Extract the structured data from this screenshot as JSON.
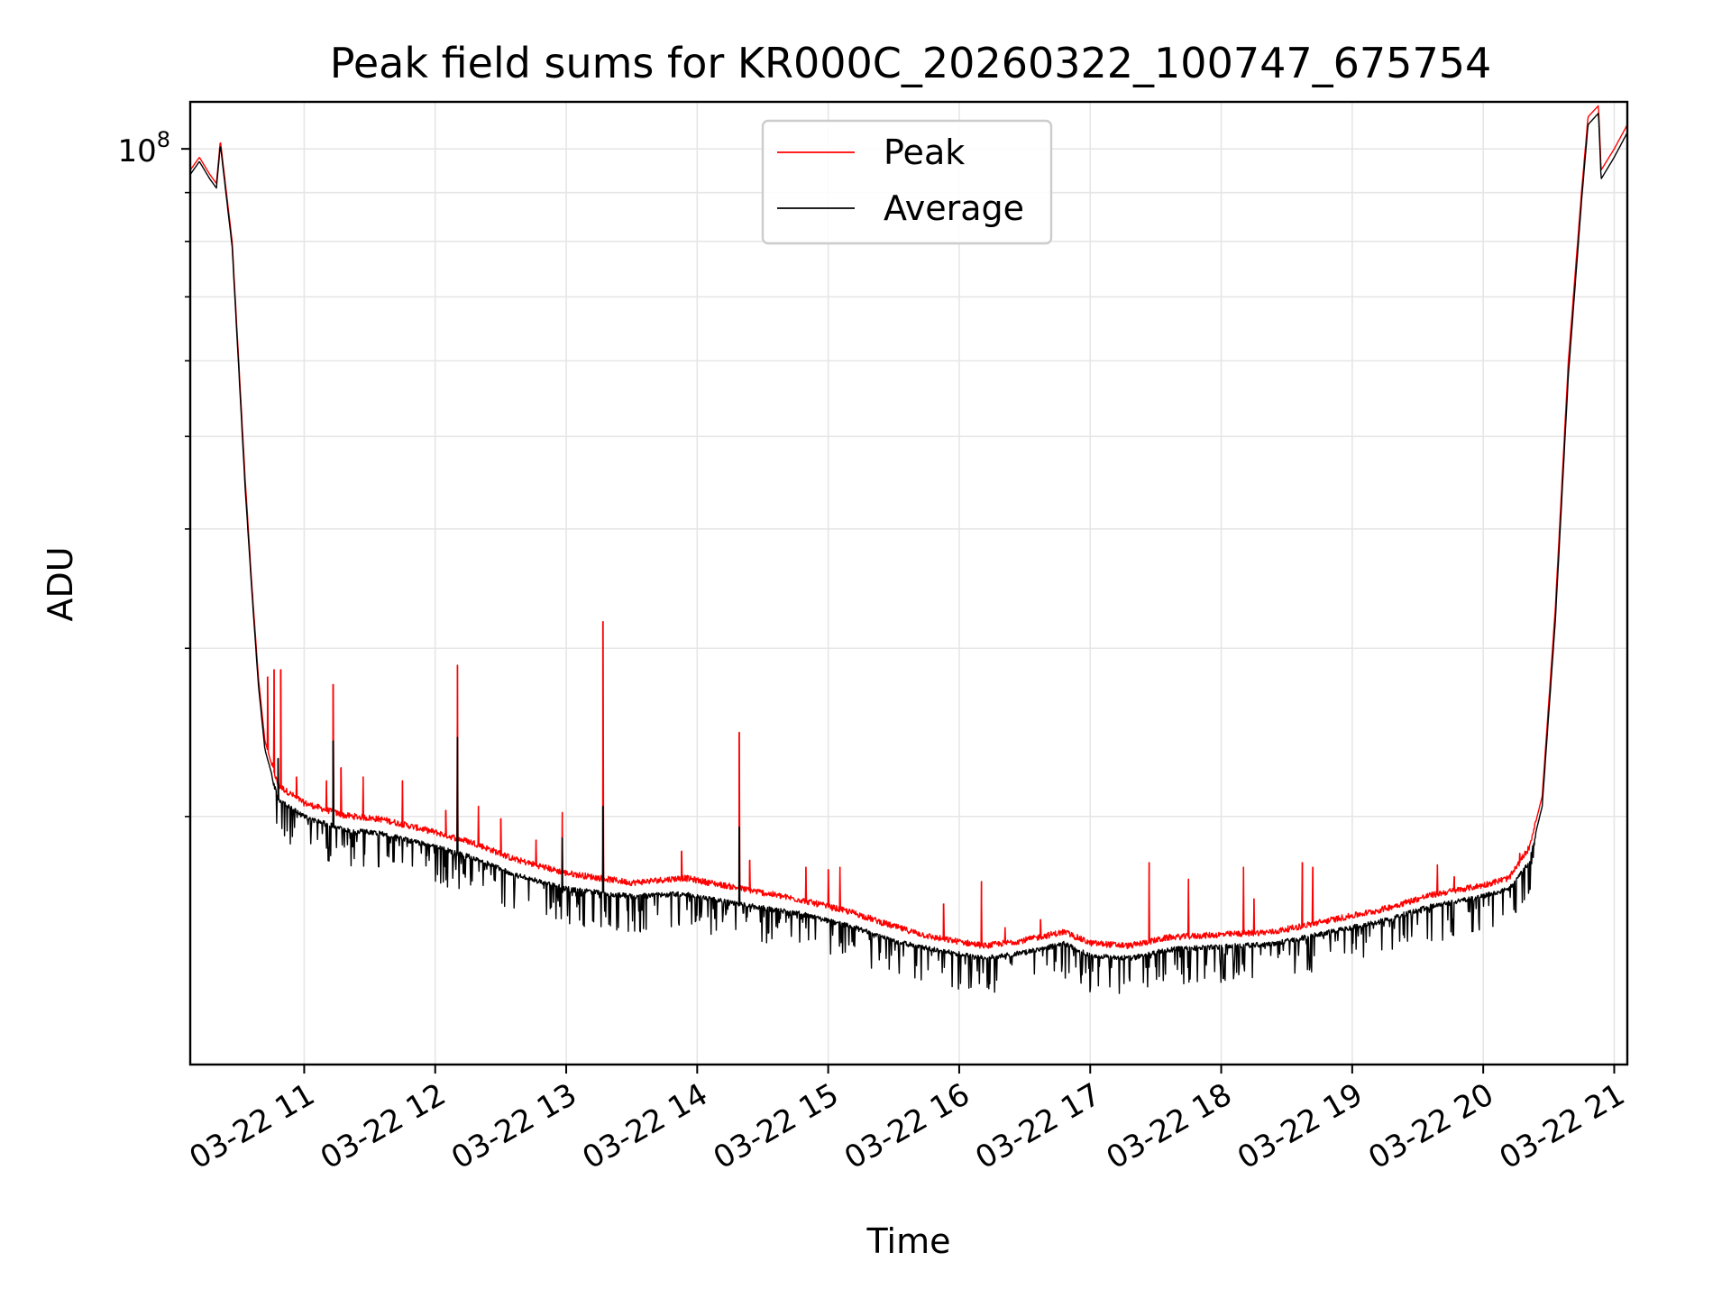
{
  "chart_data": {
    "type": "line",
    "title": "Peak field sums for KR000C_20260322_100747_675754",
    "xlabel": "Time",
    "ylabel": "ADU",
    "yscale": "log",
    "ylim": [
      11000000,
      112000000
    ],
    "xlim_hours": [
      10.13,
      21.1
    ],
    "grid": true,
    "x_ticks": [
      {
        "hour": 11,
        "label": "03-22 11"
      },
      {
        "hour": 12,
        "label": "03-22 12"
      },
      {
        "hour": 13,
        "label": "03-22 13"
      },
      {
        "hour": 14,
        "label": "03-22 14"
      },
      {
        "hour": 15,
        "label": "03-22 15"
      },
      {
        "hour": 16,
        "label": "03-22 16"
      },
      {
        "hour": 17,
        "label": "03-22 17"
      },
      {
        "hour": 18,
        "label": "03-22 18"
      },
      {
        "hour": 19,
        "label": "03-22 19"
      },
      {
        "hour": 20,
        "label": "03-22 20"
      },
      {
        "hour": 21,
        "label": "03-22 21"
      }
    ],
    "y_major_tick": {
      "value": 100000000,
      "base": "10",
      "exp": "8"
    },
    "y_minor_ticks": [
      20000000,
      30000000,
      40000000,
      50000000,
      60000000,
      70000000,
      80000000,
      90000000
    ],
    "legend": {
      "position": "upper-center",
      "entries": [
        "Peak",
        "Average"
      ]
    },
    "series": [
      {
        "name": "Peak",
        "color": "#ff0000",
        "points": [
          [
            10.13,
            95000000
          ],
          [
            10.2,
            98000000
          ],
          [
            10.28,
            94000000
          ],
          [
            10.33,
            92000000
          ],
          [
            10.36,
            102000000
          ],
          [
            10.45,
            80000000
          ],
          [
            10.5,
            60000000
          ],
          [
            10.55,
            45000000
          ],
          [
            10.6,
            35000000
          ],
          [
            10.65,
            28000000
          ],
          [
            10.7,
            24000000
          ],
          [
            10.8,
            21500000
          ],
          [
            11.0,
            20600000
          ],
          [
            11.3,
            20000000
          ],
          [
            11.6,
            19800000
          ],
          [
            12.0,
            19200000
          ],
          [
            12.3,
            18700000
          ],
          [
            12.6,
            18000000
          ],
          [
            13.0,
            17400000
          ],
          [
            13.5,
            17000000
          ],
          [
            13.9,
            17200000
          ],
          [
            14.3,
            16800000
          ],
          [
            14.8,
            16300000
          ],
          [
            15.2,
            15800000
          ],
          [
            15.5,
            15300000
          ],
          [
            15.8,
            14900000
          ],
          [
            16.2,
            14600000
          ],
          [
            16.5,
            14800000
          ],
          [
            16.8,
            15100000
          ],
          [
            17.0,
            14700000
          ],
          [
            17.3,
            14600000
          ],
          [
            17.6,
            14900000
          ],
          [
            18.0,
            15000000
          ],
          [
            18.4,
            15100000
          ],
          [
            18.8,
            15500000
          ],
          [
            19.2,
            15900000
          ],
          [
            19.6,
            16500000
          ],
          [
            20.0,
            16900000
          ],
          [
            20.2,
            17200000
          ],
          [
            20.35,
            18500000
          ],
          [
            20.45,
            21000000
          ],
          [
            20.55,
            33000000
          ],
          [
            20.65,
            60000000
          ],
          [
            20.75,
            90000000
          ],
          [
            20.8,
            108000000
          ],
          [
            20.88,
            111000000
          ],
          [
            20.9,
            95000000
          ],
          [
            21.0,
            100000000
          ],
          [
            21.1,
            106000000
          ]
        ],
        "spikes": [
          [
            10.72,
            28000000
          ],
          [
            10.77,
            28500000
          ],
          [
            10.82,
            28500000
          ],
          [
            10.94,
            22000000
          ],
          [
            11.17,
            21800000
          ],
          [
            11.22,
            27500000
          ],
          [
            11.28,
            22500000
          ],
          [
            11.45,
            22000000
          ],
          [
            11.75,
            21800000
          ],
          [
            12.08,
            20300000
          ],
          [
            12.17,
            28800000
          ],
          [
            12.33,
            20500000
          ],
          [
            12.5,
            19900000
          ],
          [
            12.77,
            18900000
          ],
          [
            12.97,
            20200000
          ],
          [
            13.28,
            32000000
          ],
          [
            13.88,
            18400000
          ],
          [
            14.32,
            24500000
          ],
          [
            14.4,
            18000000
          ],
          [
            14.83,
            17700000
          ],
          [
            15.0,
            17600000
          ],
          [
            15.09,
            17700000
          ],
          [
            15.88,
            16200000
          ],
          [
            16.17,
            17100000
          ],
          [
            16.35,
            15300000
          ],
          [
            16.62,
            15600000
          ],
          [
            17.45,
            17900000
          ],
          [
            17.75,
            17200000
          ],
          [
            18.17,
            17700000
          ],
          [
            18.25,
            16400000
          ],
          [
            18.62,
            17900000
          ],
          [
            18.7,
            17700000
          ],
          [
            19.65,
            17800000
          ],
          [
            19.78,
            17300000
          ],
          [
            20.28,
            18300000
          ]
        ]
      },
      {
        "name": "Average",
        "color": "#000000",
        "points": [
          [
            10.13,
            94000000
          ],
          [
            10.2,
            97000000
          ],
          [
            10.28,
            93000000
          ],
          [
            10.33,
            91000000
          ],
          [
            10.36,
            101000000
          ],
          [
            10.45,
            79000000
          ],
          [
            10.5,
            59000000
          ],
          [
            10.55,
            44000000
          ],
          [
            10.6,
            34500000
          ],
          [
            10.65,
            27500000
          ],
          [
            10.7,
            23500000
          ],
          [
            10.8,
            21000000
          ],
          [
            11.0,
            20100000
          ],
          [
            11.3,
            19500000
          ],
          [
            11.6,
            19300000
          ],
          [
            12.0,
            18700000
          ],
          [
            12.3,
            18200000
          ],
          [
            12.6,
            17500000
          ],
          [
            13.0,
            16900000
          ],
          [
            13.5,
            16600000
          ],
          [
            13.9,
            16700000
          ],
          [
            14.3,
            16300000
          ],
          [
            14.8,
            15900000
          ],
          [
            15.2,
            15400000
          ],
          [
            15.5,
            14900000
          ],
          [
            15.8,
            14600000
          ],
          [
            16.2,
            14300000
          ],
          [
            16.5,
            14500000
          ],
          [
            16.8,
            14800000
          ],
          [
            17.0,
            14400000
          ],
          [
            17.3,
            14300000
          ],
          [
            17.6,
            14600000
          ],
          [
            18.0,
            14700000
          ],
          [
            18.4,
            14800000
          ],
          [
            18.8,
            15200000
          ],
          [
            19.2,
            15600000
          ],
          [
            19.6,
            16200000
          ],
          [
            20.0,
            16600000
          ],
          [
            20.2,
            16900000
          ],
          [
            20.35,
            18000000
          ],
          [
            20.45,
            20500000
          ],
          [
            20.55,
            32000000
          ],
          [
            20.65,
            58000000
          ],
          [
            20.75,
            88000000
          ],
          [
            20.8,
            106000000
          ],
          [
            20.88,
            109000000
          ],
          [
            20.9,
            93000000
          ],
          [
            21.0,
            98000000
          ],
          [
            21.1,
            104000000
          ]
        ],
        "spikes": [
          [
            10.7,
            23500000
          ],
          [
            10.8,
            23000000
          ],
          [
            11.22,
            24000000
          ],
          [
            12.17,
            24200000
          ],
          [
            13.28,
            20500000
          ],
          [
            14.32,
            19500000
          ],
          [
            12.97,
            19000000
          ]
        ]
      }
    ]
  }
}
